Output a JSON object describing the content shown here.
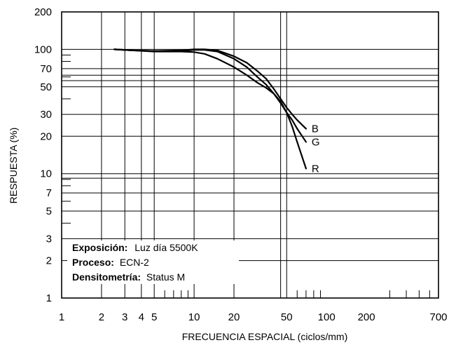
{
  "chart_data": {
    "type": "line",
    "x_scale": "log",
    "y_scale": "log",
    "xlim": [
      1,
      700
    ],
    "ylim": [
      1,
      200
    ],
    "xlabel": "FRECUENCIA ESPACIAL (ciclos/mm)",
    "ylabel": "RESPUESTA (%)",
    "x_ticks": [
      {
        "value": 1,
        "label": "1"
      },
      {
        "value": 2,
        "label": "2"
      },
      {
        "value": 3,
        "label": "3"
      },
      {
        "value": 4,
        "label": "4"
      },
      {
        "value": 5,
        "label": "5"
      },
      {
        "value": 10,
        "label": "10"
      },
      {
        "value": 20,
        "label": "20"
      },
      {
        "value": 50,
        "label": "50"
      },
      {
        "value": 100,
        "label": "100"
      },
      {
        "value": 200,
        "label": "200"
      },
      {
        "value": 700,
        "label": "700"
      }
    ],
    "y_ticks": [
      {
        "value": 1,
        "label": "1"
      },
      {
        "value": 2,
        "label": "2"
      },
      {
        "value": 3,
        "label": "3"
      },
      {
        "value": 5,
        "label": "5"
      },
      {
        "value": 7,
        "label": "7"
      },
      {
        "value": 10,
        "label": "10"
      },
      {
        "value": 20,
        "label": "20"
      },
      {
        "value": 30,
        "label": "30"
      },
      {
        "value": 50,
        "label": "50"
      },
      {
        "value": 70,
        "label": "70"
      },
      {
        "value": 100,
        "label": "100"
      },
      {
        "value": 200,
        "label": "200"
      }
    ],
    "x_gridlines": [
      2,
      3,
      4,
      5,
      10,
      20,
      50
    ],
    "x_extra_gridline": 45,
    "y_gridlines": [
      2,
      3,
      5,
      7,
      10,
      20,
      30,
      50,
      70,
      100
    ],
    "y_extra_gridlines": [
      9.2,
      56,
      62
    ],
    "x_minor_ticks": [
      6,
      7,
      8,
      9,
      60,
      70,
      80,
      90,
      300,
      400,
      500,
      600
    ],
    "y_minor_ticks": [
      4,
      6,
      8,
      9,
      40,
      60,
      80,
      90
    ],
    "series": [
      {
        "name": "B",
        "color": "#000000",
        "points": [
          [
            2.5,
            100
          ],
          [
            3.5,
            98
          ],
          [
            5,
            97
          ],
          [
            8,
            98
          ],
          [
            10,
            100
          ],
          [
            12,
            100
          ],
          [
            15,
            98
          ],
          [
            20,
            88
          ],
          [
            25,
            78
          ],
          [
            30,
            67
          ],
          [
            35,
            58
          ],
          [
            40,
            48
          ],
          [
            45,
            40
          ],
          [
            50,
            34
          ],
          [
            55,
            30
          ],
          [
            60,
            27
          ],
          [
            70,
            23
          ]
        ]
      },
      {
        "name": "G",
        "color": "#000000",
        "points": [
          [
            2.5,
            100
          ],
          [
            3.5,
            98
          ],
          [
            5,
            97
          ],
          [
            8,
            97
          ],
          [
            10,
            99
          ],
          [
            12,
            99
          ],
          [
            15,
            96
          ],
          [
            20,
            84
          ],
          [
            25,
            72
          ],
          [
            30,
            60
          ],
          [
            35,
            52
          ],
          [
            40,
            44
          ],
          [
            45,
            37
          ],
          [
            50,
            31
          ],
          [
            55,
            27
          ],
          [
            60,
            23
          ],
          [
            70,
            18
          ]
        ]
      },
      {
        "name": "R",
        "color": "#000000",
        "points": [
          [
            2.5,
            100
          ],
          [
            3.5,
            98
          ],
          [
            5,
            96
          ],
          [
            8,
            96
          ],
          [
            10,
            95
          ],
          [
            12,
            92
          ],
          [
            15,
            84
          ],
          [
            20,
            72
          ],
          [
            25,
            62
          ],
          [
            30,
            54
          ],
          [
            35,
            49
          ],
          [
            40,
            44
          ],
          [
            45,
            38
          ],
          [
            50,
            31
          ],
          [
            55,
            24
          ],
          [
            60,
            18
          ],
          [
            70,
            11
          ]
        ]
      }
    ],
    "annotations": [
      {
        "bold": "Exposición:",
        "text": "Luz día 5500K"
      },
      {
        "bold": "Proceso:",
        "text": "ECN-2"
      },
      {
        "bold": "Densitometría:",
        "text": "Status M"
      }
    ]
  }
}
